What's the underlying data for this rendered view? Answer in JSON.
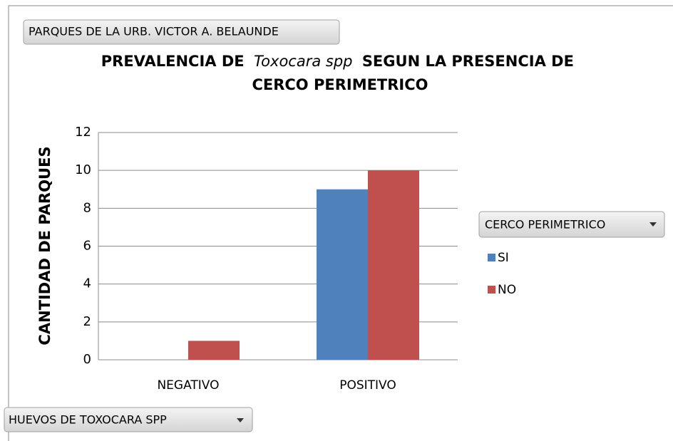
{
  "chart_data": {
    "type": "bar",
    "title": [
      "PREVALENCIA DE",
      "Toxocara spp",
      "SEGUN LA PRESENCIA DE",
      "CERCO PERIMETRICO"
    ],
    "filter_field": "PARQUES DE LA URB. VICTOR A. BELAUNDE",
    "axis_field": "HUEVOS DE TOXOCARA SPP",
    "legend_field": "CERCO PERIMETRICO",
    "y_label": "CANTIDAD DE PARQUES",
    "categories": [
      "NEGATIVO",
      "POSITIVO"
    ],
    "series": [
      {
        "name": "SI",
        "color": "#4f81bd",
        "values": [
          0,
          9
        ]
      },
      {
        "name": "NO",
        "color": "#c0504d",
        "values": [
          1,
          10
        ]
      }
    ],
    "ylim": [
      0,
      12
    ],
    "yticks": [
      0,
      2,
      4,
      6,
      8,
      10,
      12
    ],
    "grid": true
  }
}
